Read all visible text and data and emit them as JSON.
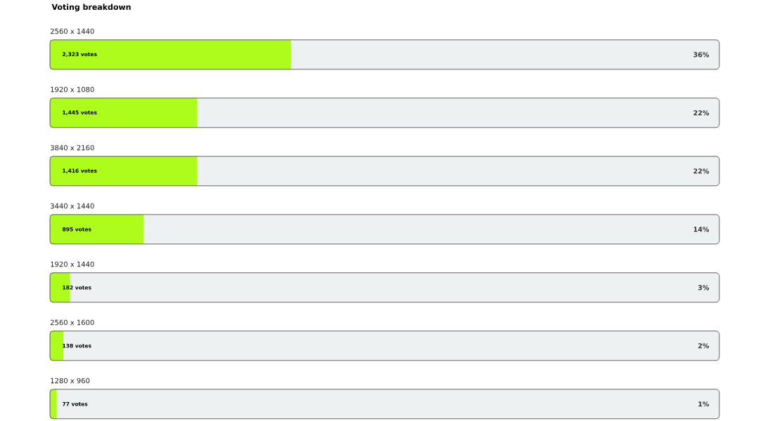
{
  "chart_data": {
    "type": "bar",
    "orientation": "horizontal",
    "title": "Voting breakdown",
    "categories": [
      "2560 x 1440",
      "1920 x 1080",
      "3840 x 2160",
      "3440 x 1440",
      "1920 x 1440",
      "2560 x 1600",
      "1280 x 960"
    ],
    "values": [
      36,
      22,
      22,
      14,
      3,
      2,
      1
    ],
    "value_labels": [
      "36%",
      "22%",
      "22%",
      "14%",
      "3%",
      "2%",
      "1%"
    ],
    "color": "#adfc1c",
    "xlim": [
      0,
      100
    ],
    "annotations": [
      "2,323 votes",
      "1,445 votes",
      "1,416 votes",
      "895 votes",
      "182 votes",
      "138 votes",
      "77 votes"
    ]
  }
}
